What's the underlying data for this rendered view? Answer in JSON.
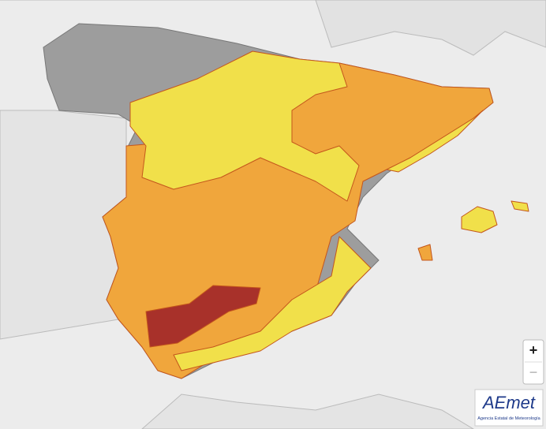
{
  "zoom_in": "+",
  "zoom_out": "−",
  "logo": {
    "name": "AEmet",
    "subtitle": "Agencia Estatal de Meteorología"
  }
}
